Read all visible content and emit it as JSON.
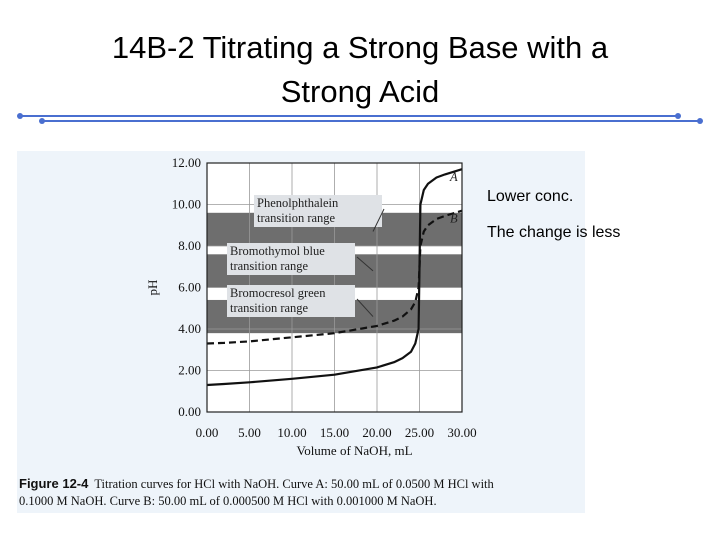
{
  "slide": {
    "title_line1": "14B-2 Titrating a Strong Base with a",
    "title_line2": "Strong Acid",
    "notes": [
      "Lower conc.",
      "The change is less"
    ]
  },
  "figure": {
    "caption_label": "Figure 12-4",
    "caption_line1": "Titration curves for HCl with NaOH. Curve A: 50.00 mL of 0.0500 M HCl with",
    "caption_line2": "0.1000 M NaOH. Curve B: 50.00 mL of 0.000500 M HCl with 0.001000 M NaOH."
  },
  "chart_data": {
    "type": "line",
    "xlabel": "Volume of NaOH, mL",
    "ylabel": "pH",
    "xlim": [
      0,
      30
    ],
    "ylim": [
      0,
      12
    ],
    "xticks": [
      "0.00",
      "5.00",
      "10.00",
      "15.00",
      "20.00",
      "25.00",
      "30.00"
    ],
    "yticks": [
      "0.00",
      "2.00",
      "4.00",
      "6.00",
      "8.00",
      "10.00",
      "12.00"
    ],
    "series": [
      {
        "name": "A",
        "style": "solid",
        "x": [
          0,
          2,
          5,
          10,
          15,
          20,
          22,
          23,
          24,
          24.5,
          24.9,
          25,
          25.1,
          25.5,
          26,
          27,
          28,
          30
        ],
        "y": [
          1.3,
          1.35,
          1.43,
          1.6,
          1.8,
          2.15,
          2.4,
          2.6,
          2.9,
          3.3,
          4.0,
          7.0,
          10.0,
          10.7,
          11.0,
          11.3,
          11.45,
          11.7
        ]
      },
      {
        "name": "B",
        "style": "dashed",
        "x": [
          0,
          2,
          5,
          10,
          15,
          20,
          22,
          23,
          24,
          24.5,
          24.9,
          25,
          25.1,
          25.5,
          26,
          27,
          28,
          30
        ],
        "y": [
          3.3,
          3.33,
          3.4,
          3.6,
          3.8,
          4.15,
          4.4,
          4.6,
          4.95,
          5.3,
          6.0,
          7.0,
          8.0,
          8.7,
          9.0,
          9.3,
          9.45,
          9.7
        ]
      }
    ],
    "bands": [
      {
        "label_line1": "Phenolphthalein",
        "label_line2": "transition range",
        "y_range": [
          8.0,
          9.6
        ]
      },
      {
        "label_line1": "Bromothymol blue",
        "label_line2": "transition range",
        "y_range": [
          6.0,
          7.6
        ]
      },
      {
        "label_line1": "Bromocresol green",
        "label_line2": "transition range",
        "y_range": [
          3.8,
          5.4
        ]
      }
    ],
    "grid": true,
    "legend": "curve labels at right end"
  },
  "colors": {
    "band": "#6e6e6e",
    "band_label_bg": "#dfe2e6",
    "plot_bg": "#ffffff",
    "rule_line": "#4a6fd0"
  }
}
